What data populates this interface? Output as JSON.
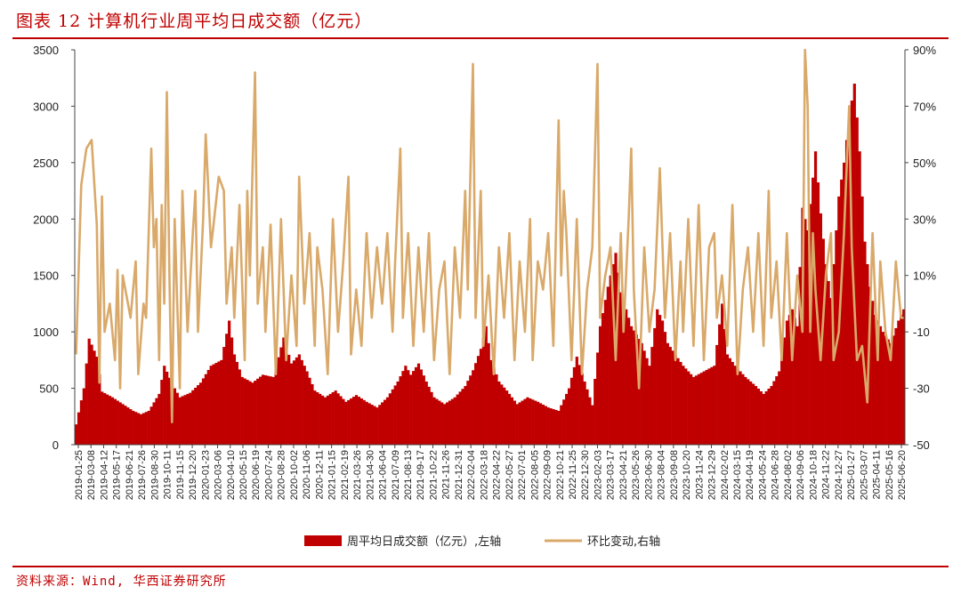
{
  "header": {
    "title": "图表 12 计算机行业周平均日成交额（亿元）"
  },
  "footer": {
    "source": "资料来源：Wind, 华西证券研究所"
  },
  "colors": {
    "accent": "#c00000",
    "bar": "#c00000",
    "line": "#d9a96a"
  },
  "chart_data": {
    "type": "bar",
    "title": "",
    "xlabel": "",
    "ylabel": "",
    "ylim": [
      0,
      3500
    ],
    "y2lim": [
      -50,
      90
    ],
    "yticks": [
      "0",
      "500",
      "1000",
      "1500",
      "2000",
      "2500",
      "3000",
      "3500"
    ],
    "y2ticks": [
      "-50",
      "-30",
      "-10",
      "10%",
      "30%",
      "50%",
      "70%",
      "90%"
    ],
    "x_tick_labels": [
      "2019-01-25",
      "2019-03-08",
      "2019-04-12",
      "2019-05-17",
      "2019-06-21",
      "2019-07-26",
      "2019-08-30",
      "2019-10-11",
      "2019-11-15",
      "2019-12-20",
      "2020-01-23",
      "2020-03-06",
      "2020-04-10",
      "2020-05-15",
      "2020-06-19",
      "2020-07-24",
      "2020-08-28",
      "2020-10-02",
      "2020-11-06",
      "2020-12-11",
      "2021-01-15",
      "2021-02-19",
      "2021-03-26",
      "2021-04-30",
      "2021-06-04",
      "2021-07-09",
      "2021-08-13",
      "2021-09-17",
      "2021-10-22",
      "2021-11-26",
      "2021-12-31",
      "2022-02-04",
      "2022-03-18",
      "2022-04-22",
      "2022-05-27",
      "2022-07-01",
      "2022-08-05",
      "2022-09-09",
      "2022-10-21",
      "2022-11-25",
      "2022-12-30",
      "2023-02-03",
      "2023-03-17",
      "2023-04-21",
      "2023-05-26",
      "2023-06-30",
      "2023-08-04",
      "2023-09-08",
      "2023-10-20",
      "2023-11-24",
      "2023-12-29",
      "2024-02-02",
      "2024-03-15",
      "2024-04-19",
      "2024-05-24",
      "2024-06-28",
      "2024-08-02",
      "2024-09-06",
      "2024-10-18",
      "2024-11-22",
      "2024-12-27",
      "2025-01-27",
      "2025-03-07",
      "2025-04-11",
      "2025-05-16",
      "2025-06-20"
    ],
    "legend_position": "bottom",
    "series": [
      {
        "name": "周平均日成交额（亿元）,左轴",
        "axis": "left",
        "type": "bar",
        "anchors": [
          [
            0,
            180
          ],
          [
            3,
            500
          ],
          [
            5,
            940
          ],
          [
            8,
            780
          ],
          [
            10,
            470
          ],
          [
            14,
            420
          ],
          [
            18,
            360
          ],
          [
            22,
            300
          ],
          [
            25,
            270
          ],
          [
            28,
            300
          ],
          [
            32,
            450
          ],
          [
            34,
            700
          ],
          [
            37,
            540
          ],
          [
            40,
            420
          ],
          [
            44,
            460
          ],
          [
            48,
            550
          ],
          [
            52,
            700
          ],
          [
            56,
            750
          ],
          [
            59,
            1100
          ],
          [
            61,
            800
          ],
          [
            64,
            600
          ],
          [
            68,
            550
          ],
          [
            72,
            620
          ],
          [
            76,
            600
          ],
          [
            80,
            950
          ],
          [
            83,
            720
          ],
          [
            86,
            800
          ],
          [
            89,
            650
          ],
          [
            92,
            480
          ],
          [
            96,
            420
          ],
          [
            100,
            480
          ],
          [
            104,
            380
          ],
          [
            108,
            440
          ],
          [
            112,
            380
          ],
          [
            116,
            330
          ],
          [
            120,
            420
          ],
          [
            124,
            560
          ],
          [
            127,
            700
          ],
          [
            129,
            620
          ],
          [
            132,
            720
          ],
          [
            135,
            560
          ],
          [
            138,
            420
          ],
          [
            142,
            360
          ],
          [
            146,
            420
          ],
          [
            150,
            520
          ],
          [
            153,
            660
          ],
          [
            156,
            850
          ],
          [
            158,
            1050
          ],
          [
            160,
            750
          ],
          [
            163,
            560
          ],
          [
            166,
            480
          ],
          [
            170,
            360
          ],
          [
            174,
            420
          ],
          [
            178,
            380
          ],
          [
            182,
            330
          ],
          [
            186,
            300
          ],
          [
            190,
            500
          ],
          [
            193,
            780
          ],
          [
            196,
            560
          ],
          [
            199,
            350
          ],
          [
            202,
            1050
          ],
          [
            205,
            1400
          ],
          [
            208,
            1700
          ],
          [
            210,
            1350
          ],
          [
            214,
            1050
          ],
          [
            218,
            900
          ],
          [
            221,
            700
          ],
          [
            224,
            1200
          ],
          [
            226,
            1100
          ],
          [
            228,
            900
          ],
          [
            231,
            800
          ],
          [
            234,
            700
          ],
          [
            238,
            600
          ],
          [
            242,
            650
          ],
          [
            246,
            700
          ],
          [
            249,
            1250
          ],
          [
            251,
            800
          ],
          [
            254,
            700
          ],
          [
            258,
            600
          ],
          [
            262,
            520
          ],
          [
            265,
            450
          ],
          [
            268,
            520
          ],
          [
            271,
            650
          ],
          [
            274,
            1100
          ],
          [
            276,
            1200
          ],
          [
            278,
            1050
          ],
          [
            280,
            2100
          ],
          [
            282,
            1900
          ],
          [
            285,
            2600
          ],
          [
            287,
            2050
          ],
          [
            289,
            1600
          ],
          [
            291,
            1300
          ],
          [
            294,
            2200
          ],
          [
            296,
            2500
          ],
          [
            298,
            2900
          ],
          [
            300,
            3200
          ],
          [
            302,
            2600
          ],
          [
            304,
            1800
          ],
          [
            306,
            1400
          ],
          [
            308,
            1150
          ],
          [
            311,
            1000
          ],
          [
            314,
            900
          ],
          [
            317,
            1100
          ],
          [
            319,
            1200
          ]
        ]
      },
      {
        "name": "环比变动,右轴",
        "axis": "right",
        "type": "line",
        "anchors": [
          [
            0,
            -18
          ],
          [
            2,
            42
          ],
          [
            4,
            55
          ],
          [
            6,
            58
          ],
          [
            8,
            28
          ],
          [
            9,
            -28
          ],
          [
            10,
            38
          ],
          [
            11,
            -10
          ],
          [
            13,
            0
          ],
          [
            15,
            -20
          ],
          [
            16,
            12
          ],
          [
            17,
            -30
          ],
          [
            18,
            10
          ],
          [
            20,
            0
          ],
          [
            21,
            -5
          ],
          [
            23,
            15
          ],
          [
            24,
            -25
          ],
          [
            26,
            0
          ],
          [
            27,
            -5
          ],
          [
            29,
            55
          ],
          [
            30,
            20
          ],
          [
            31,
            30
          ],
          [
            32,
            -20
          ],
          [
            33,
            35
          ],
          [
            34,
            0
          ],
          [
            35,
            75
          ],
          [
            36,
            10
          ],
          [
            37,
            -42
          ],
          [
            38,
            30
          ],
          [
            40,
            -30
          ],
          [
            41,
            40
          ],
          [
            43,
            -10
          ],
          [
            45,
            25
          ],
          [
            46,
            40
          ],
          [
            47,
            -10
          ],
          [
            49,
            30
          ],
          [
            50,
            60
          ],
          [
            52,
            20
          ],
          [
            53,
            28
          ],
          [
            55,
            45
          ],
          [
            57,
            40
          ],
          [
            58,
            0
          ],
          [
            60,
            20
          ],
          [
            61,
            -5
          ],
          [
            63,
            35
          ],
          [
            65,
            -20
          ],
          [
            66,
            40
          ],
          [
            67,
            10
          ],
          [
            69,
            82
          ],
          [
            70,
            0
          ],
          [
            72,
            20
          ],
          [
            73,
            -10
          ],
          [
            75,
            28
          ],
          [
            77,
            -25
          ],
          [
            79,
            30
          ],
          [
            81,
            -20
          ],
          [
            83,
            10
          ],
          [
            85,
            -15
          ],
          [
            86,
            45
          ],
          [
            88,
            0
          ],
          [
            90,
            25
          ],
          [
            92,
            -15
          ],
          [
            93,
            20
          ],
          [
            95,
            5
          ],
          [
            97,
            -25
          ],
          [
            99,
            30
          ],
          [
            101,
            -10
          ],
          [
            103,
            15
          ],
          [
            105,
            45
          ],
          [
            106,
            -18
          ],
          [
            108,
            5
          ],
          [
            110,
            -15
          ],
          [
            112,
            25
          ],
          [
            114,
            -5
          ],
          [
            116,
            20
          ],
          [
            118,
            0
          ],
          [
            120,
            25
          ],
          [
            122,
            -10
          ],
          [
            123,
            15
          ],
          [
            125,
            55
          ],
          [
            126,
            -5
          ],
          [
            128,
            25
          ],
          [
            130,
            -15
          ],
          [
            132,
            20
          ],
          [
            134,
            -10
          ],
          [
            136,
            25
          ],
          [
            138,
            -20
          ],
          [
            140,
            5
          ],
          [
            142,
            15
          ],
          [
            144,
            -25
          ],
          [
            146,
            20
          ],
          [
            148,
            -5
          ],
          [
            150,
            40
          ],
          [
            151,
            5
          ],
          [
            153,
            85
          ],
          [
            154,
            -5
          ],
          [
            156,
            40
          ],
          [
            157,
            -15
          ],
          [
            159,
            10
          ],
          [
            161,
            -25
          ],
          [
            163,
            20
          ],
          [
            165,
            -5
          ],
          [
            167,
            25
          ],
          [
            169,
            -20
          ],
          [
            171,
            15
          ],
          [
            173,
            -10
          ],
          [
            175,
            30
          ],
          [
            176,
            -20
          ],
          [
            178,
            15
          ],
          [
            180,
            5
          ],
          [
            182,
            25
          ],
          [
            184,
            -15
          ],
          [
            186,
            65
          ],
          [
            187,
            10
          ],
          [
            188,
            40
          ],
          [
            189,
            25
          ],
          [
            191,
            -20
          ],
          [
            193,
            30
          ],
          [
            195,
            -25
          ],
          [
            197,
            5
          ],
          [
            199,
            20
          ],
          [
            201,
            85
          ],
          [
            202,
            -5
          ],
          [
            204,
            10
          ],
          [
            206,
            20
          ],
          [
            208,
            -20
          ],
          [
            210,
            25
          ],
          [
            211,
            -10
          ],
          [
            213,
            30
          ],
          [
            214,
            55
          ],
          [
            215,
            5
          ],
          [
            217,
            -30
          ],
          [
            219,
            20
          ],
          [
            221,
            -10
          ],
          [
            223,
            5
          ],
          [
            225,
            48
          ],
          [
            227,
            -5
          ],
          [
            229,
            25
          ],
          [
            231,
            -20
          ],
          [
            233,
            15
          ],
          [
            234,
            -10
          ],
          [
            236,
            30
          ],
          [
            238,
            -15
          ],
          [
            240,
            35
          ],
          [
            242,
            -20
          ],
          [
            244,
            20
          ],
          [
            246,
            25
          ],
          [
            247,
            -5
          ],
          [
            249,
            10
          ],
          [
            251,
            -15
          ],
          [
            253,
            35
          ],
          [
            255,
            -25
          ],
          [
            257,
            5
          ],
          [
            259,
            20
          ],
          [
            261,
            -10
          ],
          [
            263,
            25
          ],
          [
            265,
            -15
          ],
          [
            267,
            40
          ],
          [
            268,
            -5
          ],
          [
            270,
            15
          ],
          [
            272,
            -20
          ],
          [
            274,
            25
          ],
          [
            276,
            -20
          ],
          [
            278,
            10
          ],
          [
            280,
            -10
          ],
          [
            281,
            90
          ],
          [
            282,
            70
          ],
          [
            283,
            -10
          ],
          [
            284,
            25
          ],
          [
            285,
            5
          ],
          [
            287,
            -20
          ],
          [
            289,
            10
          ],
          [
            291,
            25
          ],
          [
            292,
            -20
          ],
          [
            294,
            -10
          ],
          [
            296,
            25
          ],
          [
            298,
            70
          ],
          [
            299,
            20
          ],
          [
            301,
            -20
          ],
          [
            303,
            -15
          ],
          [
            305,
            -35
          ],
          [
            307,
            25
          ],
          [
            309,
            -20
          ],
          [
            310,
            15
          ],
          [
            312,
            -10
          ],
          [
            314,
            -20
          ],
          [
            316,
            15
          ],
          [
            318,
            -5
          ],
          [
            319,
            -5
          ]
        ]
      }
    ]
  }
}
